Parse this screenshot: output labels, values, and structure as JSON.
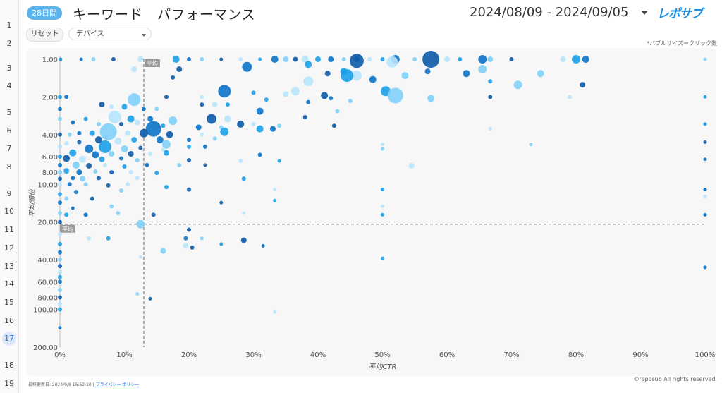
{
  "sheet": {
    "row_numbers": [
      {
        "n": "1",
        "y": 36
      },
      {
        "n": "2",
        "y": 62
      },
      {
        "n": "3",
        "y": 97
      },
      {
        "n": "4",
        "y": 122
      },
      {
        "n": "5",
        "y": 160
      },
      {
        "n": "6",
        "y": 186
      },
      {
        "n": "7",
        "y": 211
      },
      {
        "n": "8",
        "y": 237
      },
      {
        "n": "9",
        "y": 275
      },
      {
        "n": "10",
        "y": 300
      },
      {
        "n": "11",
        "y": 326
      },
      {
        "n": "12",
        "y": 352
      },
      {
        "n": "13",
        "y": 378
      },
      {
        "n": "14",
        "y": 403
      },
      {
        "n": "15",
        "y": 429
      },
      {
        "n": "16",
        "y": 455
      },
      {
        "n": "17",
        "y": 480,
        "active": true
      },
      {
        "n": "18",
        "y": 518
      },
      {
        "n": "19",
        "y": 544
      }
    ]
  },
  "header": {
    "badge": "28日間",
    "title": "キーワード　パフォーマンス",
    "date_range": "2024/08/09 - 2024/09/05",
    "logo_text": "レポサブ"
  },
  "controls": {
    "reset_label": "リセット",
    "device_select": "デバイス",
    "bubble_note": "*バブルサイズ＝クリック数"
  },
  "chart_data": {
    "type": "scatter",
    "title": "",
    "xlabel": "平均CTR",
    "ylabel": "平均順位",
    "x_ticks": [
      "0%",
      "10%",
      "20%",
      "30%",
      "40%",
      "50%",
      "60%",
      "70%",
      "80%",
      "90%",
      "100%"
    ],
    "y_ticks": [
      "1.00",
      "2.00",
      "4.00",
      "6.00",
      "8.00",
      "10.00",
      "20.00",
      "40.00",
      "60.00",
      "80.00",
      "100.00",
      "200.00"
    ],
    "xlim": [
      0,
      100
    ],
    "ylim": [
      1,
      200
    ],
    "y_scale": "log-inverted",
    "avg_x": 13,
    "avg_y": 20.8,
    "avg_x_label": "平均",
    "avg_y_label": "平均",
    "colors": [
      "#1aa0e8",
      "#0a72c8",
      "#7fd0f8",
      "#0b5aa8",
      "#b8e4fb"
    ],
    "points": [
      {
        "x": 0.1,
        "y": 1,
        "r": 2.5
      },
      {
        "x": 3.3,
        "y": 1,
        "r": 2.5
      },
      {
        "x": 5.2,
        "y": 1,
        "r": 3
      },
      {
        "x": 8.3,
        "y": 1,
        "r": 3
      },
      {
        "x": 12.5,
        "y": 1,
        "r": 4
      },
      {
        "x": 18,
        "y": 1,
        "r": 5
      },
      {
        "x": 20,
        "y": 1,
        "r": 3
      },
      {
        "x": 22,
        "y": 1,
        "r": 3
      },
      {
        "x": 25,
        "y": 1,
        "r": 2.5
      },
      {
        "x": 28,
        "y": 1,
        "r": 3
      },
      {
        "x": 31,
        "y": 1,
        "r": 2.5
      },
      {
        "x": 33.3,
        "y": 1,
        "r": 5
      },
      {
        "x": 35,
        "y": 1,
        "r": 4
      },
      {
        "x": 36.5,
        "y": 1,
        "r": 3.5
      },
      {
        "x": 38,
        "y": 1,
        "r": 5
      },
      {
        "x": 40,
        "y": 1,
        "r": 4
      },
      {
        "x": 42,
        "y": 1,
        "r": 4
      },
      {
        "x": 44,
        "y": 1,
        "r": 3
      },
      {
        "x": 46,
        "y": 1,
        "r": 4
      },
      {
        "x": 48,
        "y": 1,
        "r": 3
      },
      {
        "x": 50,
        "y": 1,
        "r": 3
      },
      {
        "x": 52,
        "y": 1,
        "r": 6
      },
      {
        "x": 55,
        "y": 1,
        "r": 3
      },
      {
        "x": 57.5,
        "y": 1,
        "r": 12
      },
      {
        "x": 60,
        "y": 1,
        "r": 4
      },
      {
        "x": 62,
        "y": 1,
        "r": 3
      },
      {
        "x": 65.5,
        "y": 1,
        "r": 6
      },
      {
        "x": 66.7,
        "y": 1,
        "r": 4
      },
      {
        "x": 70,
        "y": 1,
        "r": 3
      },
      {
        "x": 78,
        "y": 1,
        "r": 4
      },
      {
        "x": 80,
        "y": 1,
        "r": 6
      },
      {
        "x": 81.5,
        "y": 1,
        "r": 5
      },
      {
        "x": 100,
        "y": 1,
        "r": 2.5
      },
      {
        "x": 46,
        "y": 1.03,
        "r": 10
      },
      {
        "x": 51.5,
        "y": 1.05,
        "r": 8
      },
      {
        "x": 38.5,
        "y": 1.1,
        "r": 5
      },
      {
        "x": 29,
        "y": 1.15,
        "r": 7
      },
      {
        "x": 65.5,
        "y": 1.2,
        "r": 6
      },
      {
        "x": 18.5,
        "y": 1.2,
        "r": 4
      },
      {
        "x": 11.5,
        "y": 1.2,
        "r": 4
      },
      {
        "x": 44,
        "y": 1.25,
        "r": 5
      },
      {
        "x": 57,
        "y": 1.25,
        "r": 4
      },
      {
        "x": 74.5,
        "y": 1.3,
        "r": 5
      },
      {
        "x": 41.5,
        "y": 1.3,
        "r": 4
      },
      {
        "x": 46,
        "y": 1.35,
        "r": 7
      },
      {
        "x": 44.5,
        "y": 1.35,
        "r": 9
      },
      {
        "x": 63,
        "y": 1.3,
        "r": 5
      },
      {
        "x": 53.5,
        "y": 1.35,
        "r": 5
      },
      {
        "x": 17.5,
        "y": 1.4,
        "r": 3
      },
      {
        "x": 38.5,
        "y": 1.5,
        "r": 7
      },
      {
        "x": 66.7,
        "y": 1.5,
        "r": 3
      },
      {
        "x": 48.5,
        "y": 1.45,
        "r": 5
      },
      {
        "x": 71,
        "y": 1.6,
        "r": 6
      },
      {
        "x": 81,
        "y": 1.6,
        "r": 4
      },
      {
        "x": 36.5,
        "y": 1.8,
        "r": 6
      },
      {
        "x": 50.5,
        "y": 1.8,
        "r": 7
      },
      {
        "x": 25.5,
        "y": 1.8,
        "r": 9
      },
      {
        "x": 52,
        "y": 1.95,
        "r": 11
      },
      {
        "x": 41,
        "y": 1.95,
        "r": 5
      },
      {
        "x": 35,
        "y": 1.9,
        "r": 4
      },
      {
        "x": 30,
        "y": 1.85,
        "r": 3
      },
      {
        "x": 42,
        "y": 2.05,
        "r": 3
      },
      {
        "x": 57.5,
        "y": 2.05,
        "r": 5
      },
      {
        "x": 66.7,
        "y": 2.0,
        "r": 3
      },
      {
        "x": 79,
        "y": 2.0,
        "r": 3
      },
      {
        "x": 100,
        "y": 2.0,
        "r": 2.5
      },
      {
        "x": 1,
        "y": 2.0,
        "r": 3
      },
      {
        "x": 11.5,
        "y": 2.1,
        "r": 9
      },
      {
        "x": 16.5,
        "y": 2.0,
        "r": 3
      },
      {
        "x": 22,
        "y": 2.0,
        "r": 3
      },
      {
        "x": 32,
        "y": 2.1,
        "r": 3
      },
      {
        "x": 38.5,
        "y": 2.2,
        "r": 3
      },
      {
        "x": 45,
        "y": 2.15,
        "r": 3
      },
      {
        "x": 6.5,
        "y": 2.3,
        "r": 4
      },
      {
        "x": 8,
        "y": 2.4,
        "r": 3
      },
      {
        "x": 10,
        "y": 2.4,
        "r": 4
      },
      {
        "x": 13,
        "y": 2.5,
        "r": 3
      },
      {
        "x": 15,
        "y": 2.5,
        "r": 3
      },
      {
        "x": 22,
        "y": 2.3,
        "r": 3
      },
      {
        "x": 24,
        "y": 2.3,
        "r": 4
      },
      {
        "x": 26,
        "y": 2.3,
        "r": 3
      },
      {
        "x": 31,
        "y": 2.6,
        "r": 5
      },
      {
        "x": 43,
        "y": 2.6,
        "r": 3
      },
      {
        "x": 38,
        "y": 2.9,
        "r": 3
      },
      {
        "x": 8.5,
        "y": 2.9,
        "r": 9
      },
      {
        "x": 11,
        "y": 3.0,
        "r": 5
      },
      {
        "x": 14,
        "y": 3.0,
        "r": 4
      },
      {
        "x": 17.5,
        "y": 3.1,
        "r": 6
      },
      {
        "x": 23.5,
        "y": 3.0,
        "r": 7
      },
      {
        "x": 26,
        "y": 3.0,
        "r": 5
      },
      {
        "x": 4,
        "y": 3.0,
        "r": 3
      },
      {
        "x": 2,
        "y": 3.2,
        "r": 3
      },
      {
        "x": 6,
        "y": 3.3,
        "r": 3
      },
      {
        "x": 9.5,
        "y": 3.3,
        "r": 3
      },
      {
        "x": 12,
        "y": 3.2,
        "r": 4
      },
      {
        "x": 16,
        "y": 3.4,
        "r": 3
      },
      {
        "x": 21.5,
        "y": 3.5,
        "r": 4
      },
      {
        "x": 25,
        "y": 3.5,
        "r": 3
      },
      {
        "x": 28,
        "y": 3.3,
        "r": 5
      },
      {
        "x": 30,
        "y": 3.3,
        "r": 3
      },
      {
        "x": 31,
        "y": 3.6,
        "r": 5
      },
      {
        "x": 33,
        "y": 3.6,
        "r": 4
      },
      {
        "x": 34,
        "y": 3.4,
        "r": 3
      },
      {
        "x": 42.5,
        "y": 3.4,
        "r": 3
      },
      {
        "x": 66.7,
        "y": 3.6,
        "r": 2.5
      },
      {
        "x": 100,
        "y": 3.3,
        "r": 2.5
      },
      {
        "x": 14.5,
        "y": 3.6,
        "r": 11
      },
      {
        "x": 7.5,
        "y": 3.8,
        "r": 12
      },
      {
        "x": 13,
        "y": 3.9,
        "r": 6
      },
      {
        "x": 10.5,
        "y": 3.9,
        "r": 4
      },
      {
        "x": 5,
        "y": 3.9,
        "r": 4
      },
      {
        "x": 3,
        "y": 3.9,
        "r": 3
      },
      {
        "x": 1.5,
        "y": 4.0,
        "r": 3
      },
      {
        "x": 17,
        "y": 4.0,
        "r": 5
      },
      {
        "x": 22,
        "y": 4.0,
        "r": 3
      },
      {
        "x": 25.5,
        "y": 3.8,
        "r": 6
      },
      {
        "x": 20,
        "y": 4.4,
        "r": 3
      },
      {
        "x": 24,
        "y": 4.3,
        "r": 3
      },
      {
        "x": 6,
        "y": 4.4,
        "r": 5
      },
      {
        "x": 9,
        "y": 4.5,
        "r": 5
      },
      {
        "x": 11.5,
        "y": 4.4,
        "r": 4
      },
      {
        "x": 15.5,
        "y": 4.4,
        "r": 5
      },
      {
        "x": 16.5,
        "y": 4.8,
        "r": 6
      },
      {
        "x": 3,
        "y": 4.6,
        "r": 3
      },
      {
        "x": 1,
        "y": 4.7,
        "r": 3
      },
      {
        "x": 7,
        "y": 5.0,
        "r": 9
      },
      {
        "x": 4.5,
        "y": 5.2,
        "r": 6
      },
      {
        "x": 10,
        "y": 5.2,
        "r": 5
      },
      {
        "x": 12.5,
        "y": 5.1,
        "r": 3
      },
      {
        "x": 16,
        "y": 5.3,
        "r": 3
      },
      {
        "x": 20,
        "y": 5.0,
        "r": 3
      },
      {
        "x": 22.5,
        "y": 5.0,
        "r": 3
      },
      {
        "x": 73,
        "y": 4.8,
        "r": 2.5
      },
      {
        "x": 100,
        "y": 4.6,
        "r": 2.5
      },
      {
        "x": 50,
        "y": 4.8,
        "r": 2.5
      },
      {
        "x": 2,
        "y": 5.6,
        "r": 5
      },
      {
        "x": 5.5,
        "y": 5.8,
        "r": 5
      },
      {
        "x": 8,
        "y": 5.7,
        "r": 4
      },
      {
        "x": 11,
        "y": 5.7,
        "r": 4
      },
      {
        "x": 14,
        "y": 5.7,
        "r": 3
      },
      {
        "x": 16.5,
        "y": 5.6,
        "r": 4
      },
      {
        "x": 31,
        "y": 5.8,
        "r": 3
      },
      {
        "x": 50,
        "y": 5.2,
        "r": 2.5
      },
      {
        "x": 1,
        "y": 6.2,
        "r": 5
      },
      {
        "x": 3.5,
        "y": 6.3,
        "r": 5
      },
      {
        "x": 6.5,
        "y": 6.3,
        "r": 4
      },
      {
        "x": 9.5,
        "y": 6.2,
        "r": 3
      },
      {
        "x": 12,
        "y": 6.4,
        "r": 3
      },
      {
        "x": 20,
        "y": 6.4,
        "r": 3
      },
      {
        "x": 28,
        "y": 6.5,
        "r": 3
      },
      {
        "x": 34,
        "y": 6.5,
        "r": 2.5
      },
      {
        "x": 100,
        "y": 6.3,
        "r": 2.5
      },
      {
        "x": 2.5,
        "y": 7.0,
        "r": 5
      },
      {
        "x": 4.5,
        "y": 7.1,
        "r": 4
      },
      {
        "x": 7,
        "y": 7.0,
        "r": 3
      },
      {
        "x": 10,
        "y": 7.2,
        "r": 3
      },
      {
        "x": 13.5,
        "y": 7.0,
        "r": 3
      },
      {
        "x": 18.5,
        "y": 7.0,
        "r": 3
      },
      {
        "x": 22.5,
        "y": 7.0,
        "r": 2.5
      },
      {
        "x": 54.5,
        "y": 7.1,
        "r": 4
      },
      {
        "x": 1,
        "y": 7.8,
        "r": 4
      },
      {
        "x": 3,
        "y": 8.0,
        "r": 4
      },
      {
        "x": 5.5,
        "y": 7.9,
        "r": 3
      },
      {
        "x": 8,
        "y": 8.0,
        "r": 3
      },
      {
        "x": 11,
        "y": 8.0,
        "r": 3
      },
      {
        "x": 15,
        "y": 8.1,
        "r": 3
      },
      {
        "x": 2,
        "y": 8.9,
        "r": 3
      },
      {
        "x": 3.5,
        "y": 9.0,
        "r": 4
      },
      {
        "x": 6,
        "y": 8.9,
        "r": 3
      },
      {
        "x": 12,
        "y": 8.9,
        "r": 3
      },
      {
        "x": 28.5,
        "y": 9.0,
        "r": 3
      },
      {
        "x": 1.5,
        "y": 10.0,
        "r": 3
      },
      {
        "x": 4,
        "y": 10.0,
        "r": 3
      },
      {
        "x": 7.5,
        "y": 10.2,
        "r": 3
      },
      {
        "x": 10.5,
        "y": 10.0,
        "r": 3
      },
      {
        "x": 16.5,
        "y": 10.5,
        "r": 3
      },
      {
        "x": 2.5,
        "y": 11.5,
        "r": 3
      },
      {
        "x": 9.5,
        "y": 11.2,
        "r": 3
      },
      {
        "x": 20,
        "y": 11.0,
        "r": 3
      },
      {
        "x": 33.3,
        "y": 11.0,
        "r": 2.5
      },
      {
        "x": 50,
        "y": 11.0,
        "r": 2.5
      },
      {
        "x": 100,
        "y": 11.0,
        "r": 2.5
      },
      {
        "x": 1,
        "y": 13.0,
        "r": 3
      },
      {
        "x": 5,
        "y": 13.0,
        "r": 3
      },
      {
        "x": 100,
        "y": 12.5,
        "r": 2.5
      },
      {
        "x": 33.3,
        "y": 13.5,
        "r": 2.5
      },
      {
        "x": 2,
        "y": 15.5,
        "r": 2.5
      },
      {
        "x": 8,
        "y": 15.0,
        "r": 3
      },
      {
        "x": 25,
        "y": 14.0,
        "r": 2.5
      },
      {
        "x": 50,
        "y": 15.0,
        "r": 2.5
      },
      {
        "x": 1,
        "y": 17.5,
        "r": 3
      },
      {
        "x": 4,
        "y": 17.5,
        "r": 3
      },
      {
        "x": 9,
        "y": 17.0,
        "r": 3
      },
      {
        "x": 14.5,
        "y": 17.5,
        "r": 3
      },
      {
        "x": 28.5,
        "y": 17.0,
        "r": 2.5
      },
      {
        "x": 50,
        "y": 17.5,
        "r": 2.5
      },
      {
        "x": 100,
        "y": 17.5,
        "r": 2.5
      },
      {
        "x": 12.5,
        "y": 20.8,
        "r": 6
      },
      {
        "x": 20,
        "y": 23,
        "r": 3
      },
      {
        "x": 4.5,
        "y": 27,
        "r": 3
      },
      {
        "x": 7.5,
        "y": 27,
        "r": 3
      },
      {
        "x": 19.5,
        "y": 27,
        "r": 3
      },
      {
        "x": 22,
        "y": 27,
        "r": 2.5
      },
      {
        "x": 28.5,
        "y": 28,
        "r": 4
      },
      {
        "x": 19.5,
        "y": 31,
        "r": 4
      },
      {
        "x": 25,
        "y": 30,
        "r": 2.5
      },
      {
        "x": 31.5,
        "y": 31,
        "r": 2.5
      },
      {
        "x": 16,
        "y": 34,
        "r": 4
      },
      {
        "x": 20.5,
        "y": 32,
        "r": 3
      },
      {
        "x": 12.5,
        "y": 38,
        "r": 2.5
      },
      {
        "x": 50,
        "y": 39,
        "r": 2.5
      },
      {
        "x": 100,
        "y": 46,
        "r": 2.5
      },
      {
        "x": 12,
        "y": 75,
        "r": 2.5
      },
      {
        "x": 14,
        "y": 82,
        "r": 2.5
      },
      {
        "x": 33.3,
        "y": 105,
        "r": 2.5
      },
      {
        "x": 0,
        "y": 2,
        "r": 3
      },
      {
        "x": 0,
        "y": 2.5,
        "r": 3
      },
      {
        "x": 0,
        "y": 3,
        "r": 3
      },
      {
        "x": 0,
        "y": 4,
        "r": 3
      },
      {
        "x": 0,
        "y": 5,
        "r": 3
      },
      {
        "x": 0,
        "y": 6,
        "r": 3
      },
      {
        "x": 0,
        "y": 7,
        "r": 3
      },
      {
        "x": 0,
        "y": 8,
        "r": 3
      },
      {
        "x": 0,
        "y": 9,
        "r": 3
      },
      {
        "x": 0,
        "y": 10,
        "r": 3
      },
      {
        "x": 0,
        "y": 12,
        "r": 3
      },
      {
        "x": 0,
        "y": 14,
        "r": 3
      },
      {
        "x": 0,
        "y": 17,
        "r": 3
      },
      {
        "x": 0,
        "y": 20,
        "r": 3
      },
      {
        "x": 0,
        "y": 25,
        "r": 3
      },
      {
        "x": 0,
        "y": 30,
        "r": 3
      },
      {
        "x": 0,
        "y": 35,
        "r": 3
      },
      {
        "x": 0,
        "y": 40,
        "r": 3
      },
      {
        "x": 0,
        "y": 45,
        "r": 3
      },
      {
        "x": 0,
        "y": 50,
        "r": 3
      },
      {
        "x": 0,
        "y": 55,
        "r": 3
      },
      {
        "x": 0,
        "y": 60,
        "r": 3
      },
      {
        "x": 0,
        "y": 70,
        "r": 3
      },
      {
        "x": 0,
        "y": 80,
        "r": 3
      },
      {
        "x": 0,
        "y": 90,
        "r": 3
      },
      {
        "x": 0,
        "y": 100,
        "r": 3
      },
      {
        "x": 0,
        "y": 140,
        "r": 2.5
      }
    ]
  },
  "footer": {
    "copyright": "©reposub All rights reserved.",
    "updated": "最終更新日: 2024/9/8 15:52:10",
    "separator": "|",
    "privacy": "プライバシー ポリシー"
  }
}
